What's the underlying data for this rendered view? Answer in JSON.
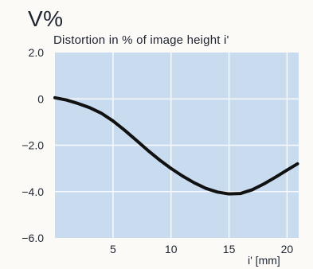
{
  "chart_data": {
    "type": "line",
    "ylabel": "V%",
    "title": "Distortion in % of image height i'",
    "xlabel": "i' [mm]",
    "x_ticks": [
      "5",
      "10",
      "15",
      "20"
    ],
    "y_ticks": [
      "2.0",
      "0",
      "-2.0",
      "-4.0",
      "-6.0"
    ],
    "xlim": [
      0,
      21
    ],
    "ylim": [
      -6.0,
      2.0
    ],
    "grid": true,
    "series": [
      {
        "points": [
          {
            "x": 0,
            "y": 0.05
          },
          {
            "x": 1,
            "y": -0.05
          },
          {
            "x": 2,
            "y": -0.2
          },
          {
            "x": 3,
            "y": -0.38
          },
          {
            "x": 4,
            "y": -0.62
          },
          {
            "x": 5,
            "y": -0.95
          },
          {
            "x": 6,
            "y": -1.35
          },
          {
            "x": 7,
            "y": -1.78
          },
          {
            "x": 8,
            "y": -2.22
          },
          {
            "x": 9,
            "y": -2.63
          },
          {
            "x": 10,
            "y": -3.0
          },
          {
            "x": 11,
            "y": -3.33
          },
          {
            "x": 12,
            "y": -3.62
          },
          {
            "x": 13,
            "y": -3.86
          },
          {
            "x": 14,
            "y": -4.02
          },
          {
            "x": 15,
            "y": -4.1
          },
          {
            "x": 16,
            "y": -4.08
          },
          {
            "x": 17,
            "y": -3.92
          },
          {
            "x": 18,
            "y": -3.67
          },
          {
            "x": 19,
            "y": -3.38
          },
          {
            "x": 20,
            "y": -3.07
          },
          {
            "x": 20.9,
            "y": -2.8
          }
        ]
      }
    ]
  },
  "colors": {
    "plot_background": "#c9dcef",
    "grid": "#f7f9fc",
    "line": "#111111",
    "text": "#1e2430"
  }
}
